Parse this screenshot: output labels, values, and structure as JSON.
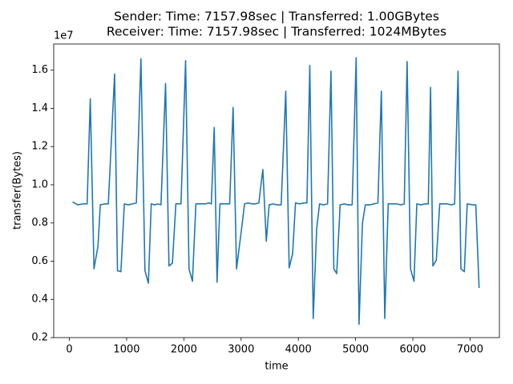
{
  "chart_data": {
    "type": "line",
    "title": [
      "Sender: Time: 7157.98sec | Transferred: 1.00GBytes",
      "Receiver: Time: 7157.98sec | Transferred: 1024MBytes"
    ],
    "x_label": "time",
    "y_label": "transfer(Bytes)",
    "y_offset_label": "1e7",
    "color": "#1f77b4",
    "xlim": [
      -274,
      7512
    ],
    "xticks": [
      0,
      1000,
      2000,
      3000,
      4000,
      5000,
      6000,
      7000
    ],
    "ylim": [
      2000000,
      17370000
    ],
    "yticks": [
      {
        "value": 2000000,
        "label": "0.2"
      },
      {
        "value": 4000000,
        "label": "0.4"
      },
      {
        "value": 6000000,
        "label": "0.6"
      },
      {
        "value": 8000000,
        "label": "0.8"
      },
      {
        "value": 10000000,
        "label": "1.0"
      },
      {
        "value": 12000000,
        "label": "1.2"
      },
      {
        "value": 14000000,
        "label": "1.4"
      },
      {
        "value": 16000000,
        "label": "1.6"
      }
    ],
    "grid": false,
    "x": [
      56,
      150,
      230,
      310,
      365,
      430,
      500,
      540,
      620,
      680,
      790,
      840,
      900,
      960,
      1030,
      1100,
      1170,
      1250,
      1320,
      1380,
      1430,
      1490,
      1550,
      1600,
      1680,
      1740,
      1800,
      1860,
      1950,
      2030,
      2090,
      2150,
      2210,
      2300,
      2380,
      2440,
      2480,
      2530,
      2580,
      2630,
      2720,
      2800,
      2860,
      2920,
      3000,
      3060,
      3120,
      3190,
      3250,
      3310,
      3380,
      3440,
      3490,
      3560,
      3630,
      3700,
      3780,
      3840,
      3900,
      3950,
      4020,
      4100,
      4150,
      4200,
      4260,
      4320,
      4370,
      4440,
      4510,
      4570,
      4620,
      4670,
      4730,
      4800,
      4870,
      4940,
      5010,
      5060,
      5120,
      5170,
      5250,
      5320,
      5390,
      5450,
      5510,
      5570,
      5650,
      5720,
      5790,
      5850,
      5900,
      5960,
      6020,
      6070,
      6140,
      6210,
      6270,
      6310,
      6350,
      6410,
      6470,
      6540,
      6600,
      6680,
      6730,
      6790,
      6840,
      6900,
      6950,
      7050,
      7100,
      7158
    ],
    "values": [
      9100000,
      8950000,
      9000000,
      9000000,
      14500000,
      5600000,
      6800000,
      8950000,
      9000000,
      9000000,
      15800000,
      5500000,
      5450000,
      9000000,
      8950000,
      9000000,
      9050000,
      16600000,
      5500000,
      4850000,
      9000000,
      8950000,
      9000000,
      8950000,
      15300000,
      5750000,
      5900000,
      9000000,
      9000000,
      16500000,
      5600000,
      4950000,
      9000000,
      9000000,
      9000000,
      9050000,
      9000000,
      13000000,
      4900000,
      9000000,
      9000000,
      9000000,
      14050000,
      5600000,
      7500000,
      9000000,
      9050000,
      9000000,
      9000000,
      9050000,
      10800000,
      7050000,
      8950000,
      9000000,
      8950000,
      8950000,
      14900000,
      5650000,
      6400000,
      9050000,
      9000000,
      9050000,
      9050000,
      16250000,
      3000000,
      7700000,
      9000000,
      8950000,
      9000000,
      15950000,
      5600000,
      5350000,
      8950000,
      9000000,
      8950000,
      8950000,
      16650000,
      2700000,
      8000000,
      8950000,
      8950000,
      9000000,
      9050000,
      14900000,
      3000000,
      9000000,
      9000000,
      9000000,
      8950000,
      9000000,
      16450000,
      5600000,
      4950000,
      9000000,
      8950000,
      9000000,
      9000000,
      15100000,
      5750000,
      6050000,
      9000000,
      9000000,
      9000000,
      8950000,
      9000000,
      15950000,
      5600000,
      5450000,
      9000000,
      8950000,
      8950000,
      4600000
    ]
  }
}
